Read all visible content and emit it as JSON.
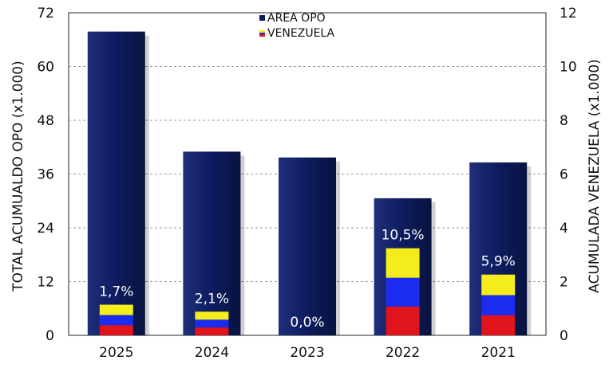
{
  "chart_data": {
    "type": "bar",
    "categories": [
      "2025",
      "2024",
      "2023",
      "2022",
      "2021"
    ],
    "series": [
      {
        "name": "AREA OPO",
        "axis": "left",
        "values": [
          67.8,
          41.0,
          39.7,
          30.6,
          38.6
        ],
        "color": "#0d1c5e"
      },
      {
        "name": "VENEZUELA",
        "axis": "right",
        "values": [
          1.14,
          0.88,
          0.0,
          3.24,
          2.26
        ],
        "flag_colors": [
          "#f5ec1d",
          "#1b2cf0",
          "#e0141b"
        ]
      }
    ],
    "percent_labels": [
      "1,7%",
      "2,1%",
      "0,0%",
      "10,5%",
      "5,9%"
    ],
    "ylabel_left": "TOTAL ACUMUALDO OPO (x1.000)",
    "ylabel_right": "ACUMULADA VENEZUELA (x1.000)",
    "ylim_left": [
      0,
      72
    ],
    "ylim_right": [
      0,
      12
    ],
    "yticks_left": [
      "0",
      "12",
      "24",
      "36",
      "48",
      "60",
      "72"
    ],
    "yticks_right": [
      "0",
      "2",
      "4",
      "6",
      "8",
      "10",
      "12"
    ],
    "legend_position": "top-center",
    "grid": true
  }
}
